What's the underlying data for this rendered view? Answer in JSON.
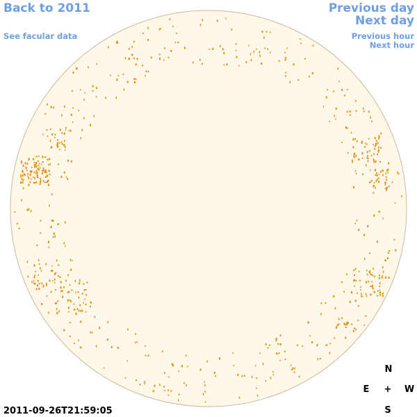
{
  "links": {
    "back": "Back to 2011",
    "facular": "See facular data",
    "previous_day": "Previous day",
    "next_day": "Next day",
    "previous_hour": "Previous hour",
    "next_hour": "Next hour"
  },
  "timestamp": "2011-09-26T21:59:05",
  "compass": {
    "north": "N",
    "east": "E",
    "center": "+",
    "west": "W",
    "south": "S"
  }
}
